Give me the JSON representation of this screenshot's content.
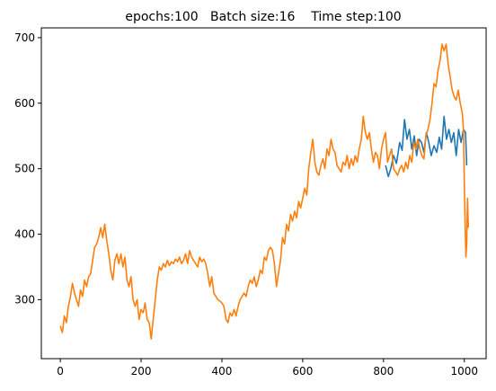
{
  "chart_data": {
    "type": "line",
    "title": "epochs:100   Batch size:16    Time step:100",
    "xlabel": "",
    "ylabel": "",
    "xlim": [
      -47,
      1054
    ],
    "ylim": [
      210,
      715
    ],
    "x_ticks": [
      0,
      200,
      400,
      600,
      800,
      1000
    ],
    "y_ticks": [
      300,
      400,
      500,
      600,
      700
    ],
    "grid": false,
    "legend": "none",
    "series": [
      {
        "color": "#1f77b4",
        "points": [
          [
            805,
            505
          ],
          [
            812,
            488
          ],
          [
            818,
            500
          ],
          [
            825,
            520
          ],
          [
            832,
            508
          ],
          [
            840,
            540
          ],
          [
            846,
            528
          ],
          [
            852,
            575
          ],
          [
            858,
            545
          ],
          [
            864,
            560
          ],
          [
            870,
            530
          ],
          [
            876,
            550
          ],
          [
            882,
            520
          ],
          [
            888,
            545
          ],
          [
            894,
            540
          ],
          [
            900,
            525
          ],
          [
            906,
            555
          ],
          [
            912,
            540
          ],
          [
            918,
            520
          ],
          [
            925,
            535
          ],
          [
            932,
            525
          ],
          [
            938,
            548
          ],
          [
            944,
            530
          ],
          [
            950,
            580
          ],
          [
            956,
            545
          ],
          [
            962,
            560
          ],
          [
            968,
            540
          ],
          [
            974,
            555
          ],
          [
            980,
            520
          ],
          [
            986,
            560
          ],
          [
            992,
            540
          ],
          [
            998,
            560
          ],
          [
            1003,
            555
          ],
          [
            1006,
            505
          ]
        ]
      },
      {
        "color": "#ff7f0e",
        "points": [
          [
            0,
            260
          ],
          [
            5,
            250
          ],
          [
            10,
            275
          ],
          [
            15,
            265
          ],
          [
            20,
            290
          ],
          [
            25,
            305
          ],
          [
            30,
            325
          ],
          [
            35,
            310
          ],
          [
            40,
            300
          ],
          [
            45,
            290
          ],
          [
            50,
            315
          ],
          [
            55,
            305
          ],
          [
            60,
            330
          ],
          [
            65,
            320
          ],
          [
            70,
            335
          ],
          [
            75,
            340
          ],
          [
            80,
            360
          ],
          [
            85,
            380
          ],
          [
            90,
            385
          ],
          [
            95,
            395
          ],
          [
            100,
            410
          ],
          [
            105,
            395
          ],
          [
            110,
            415
          ],
          [
            115,
            390
          ],
          [
            120,
            370
          ],
          [
            125,
            345
          ],
          [
            130,
            330
          ],
          [
            135,
            360
          ],
          [
            140,
            370
          ],
          [
            145,
            355
          ],
          [
            150,
            370
          ],
          [
            155,
            350
          ],
          [
            160,
            365
          ],
          [
            165,
            330
          ],
          [
            170,
            320
          ],
          [
            175,
            335
          ],
          [
            180,
            300
          ],
          [
            185,
            290
          ],
          [
            190,
            300
          ],
          [
            195,
            270
          ],
          [
            200,
            285
          ],
          [
            205,
            280
          ],
          [
            210,
            295
          ],
          [
            215,
            270
          ],
          [
            220,
            265
          ],
          [
            225,
            240
          ],
          [
            230,
            270
          ],
          [
            235,
            300
          ],
          [
            240,
            330
          ],
          [
            245,
            350
          ],
          [
            250,
            345
          ],
          [
            255,
            355
          ],
          [
            260,
            350
          ],
          [
            265,
            360
          ],
          [
            270,
            352
          ],
          [
            275,
            358
          ],
          [
            280,
            355
          ],
          [
            285,
            362
          ],
          [
            290,
            358
          ],
          [
            295,
            365
          ],
          [
            300,
            355
          ],
          [
            305,
            360
          ],
          [
            310,
            370
          ],
          [
            315,
            355
          ],
          [
            320,
            375
          ],
          [
            325,
            365
          ],
          [
            330,
            360
          ],
          [
            335,
            355
          ],
          [
            340,
            350
          ],
          [
            345,
            365
          ],
          [
            350,
            358
          ],
          [
            355,
            362
          ],
          [
            360,
            355
          ],
          [
            365,
            340
          ],
          [
            370,
            320
          ],
          [
            375,
            335
          ],
          [
            380,
            310
          ],
          [
            385,
            305
          ],
          [
            390,
            300
          ],
          [
            395,
            298
          ],
          [
            400,
            295
          ],
          [
            405,
            290
          ],
          [
            410,
            270
          ],
          [
            415,
            265
          ],
          [
            420,
            280
          ],
          [
            425,
            275
          ],
          [
            430,
            285
          ],
          [
            435,
            275
          ],
          [
            440,
            290
          ],
          [
            445,
            300
          ],
          [
            450,
            305
          ],
          [
            455,
            310
          ],
          [
            460,
            305
          ],
          [
            465,
            320
          ],
          [
            470,
            330
          ],
          [
            475,
            325
          ],
          [
            480,
            335
          ],
          [
            485,
            320
          ],
          [
            490,
            330
          ],
          [
            495,
            345
          ],
          [
            500,
            340
          ],
          [
            505,
            365
          ],
          [
            510,
            360
          ],
          [
            515,
            375
          ],
          [
            520,
            380
          ],
          [
            525,
            375
          ],
          [
            530,
            355
          ],
          [
            535,
            320
          ],
          [
            540,
            340
          ],
          [
            545,
            360
          ],
          [
            550,
            395
          ],
          [
            555,
            385
          ],
          [
            560,
            415
          ],
          [
            565,
            405
          ],
          [
            570,
            430
          ],
          [
            575,
            420
          ],
          [
            580,
            435
          ],
          [
            585,
            425
          ],
          [
            590,
            450
          ],
          [
            595,
            440
          ],
          [
            600,
            455
          ],
          [
            605,
            470
          ],
          [
            610,
            460
          ],
          [
            615,
            500
          ],
          [
            620,
            525
          ],
          [
            625,
            545
          ],
          [
            630,
            510
          ],
          [
            635,
            495
          ],
          [
            640,
            490
          ],
          [
            645,
            505
          ],
          [
            650,
            515
          ],
          [
            655,
            500
          ],
          [
            660,
            530
          ],
          [
            665,
            520
          ],
          [
            670,
            545
          ],
          [
            675,
            530
          ],
          [
            680,
            525
          ],
          [
            685,
            505
          ],
          [
            690,
            500
          ],
          [
            695,
            495
          ],
          [
            700,
            510
          ],
          [
            705,
            505
          ],
          [
            710,
            520
          ],
          [
            715,
            500
          ],
          [
            720,
            515
          ],
          [
            725,
            505
          ],
          [
            730,
            520
          ],
          [
            735,
            510
          ],
          [
            740,
            530
          ],
          [
            745,
            545
          ],
          [
            750,
            580
          ],
          [
            755,
            555
          ],
          [
            760,
            545
          ],
          [
            765,
            555
          ],
          [
            770,
            530
          ],
          [
            775,
            510
          ],
          [
            780,
            525
          ],
          [
            785,
            520
          ],
          [
            790,
            500
          ],
          [
            795,
            530
          ],
          [
            800,
            545
          ],
          [
            805,
            555
          ],
          [
            810,
            510
          ],
          [
            815,
            520
          ],
          [
            820,
            530
          ],
          [
            825,
            500
          ],
          [
            830,
            495
          ],
          [
            835,
            490
          ],
          [
            840,
            500
          ],
          [
            845,
            505
          ],
          [
            850,
            495
          ],
          [
            855,
            510
          ],
          [
            860,
            500
          ],
          [
            865,
            520
          ],
          [
            870,
            510
          ],
          [
            875,
            540
          ],
          [
            880,
            530
          ],
          [
            885,
            545
          ],
          [
            890,
            530
          ],
          [
            895,
            520
          ],
          [
            900,
            515
          ],
          [
            905,
            550
          ],
          [
            910,
            560
          ],
          [
            915,
            575
          ],
          [
            920,
            600
          ],
          [
            925,
            630
          ],
          [
            930,
            625
          ],
          [
            935,
            650
          ],
          [
            940,
            665
          ],
          [
            945,
            690
          ],
          [
            950,
            680
          ],
          [
            955,
            690
          ],
          [
            960,
            660
          ],
          [
            965,
            640
          ],
          [
            970,
            620
          ],
          [
            975,
            610
          ],
          [
            980,
            605
          ],
          [
            985,
            620
          ],
          [
            990,
            600
          ],
          [
            995,
            585
          ],
          [
            998,
            560
          ],
          [
            1000,
            480
          ],
          [
            1002,
            420
          ],
          [
            1004,
            365
          ],
          [
            1006,
            385
          ],
          [
            1008,
            455
          ],
          [
            1010,
            410
          ]
        ]
      }
    ]
  }
}
